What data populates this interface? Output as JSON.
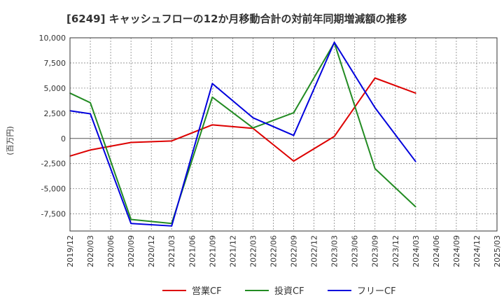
{
  "chart_data": {
    "type": "line",
    "title": "[6249]  キャッシュフローの12か月移動合計の対前年同期増減額の推移",
    "ylabel": "(百万円)",
    "xlabel": "",
    "ylim": [
      -9200,
      10000
    ],
    "yticks": [
      10000,
      7500,
      5000,
      2500,
      0,
      -2500,
      -5000,
      -7500
    ],
    "ytick_labels": [
      "10,000",
      "7,500",
      "5,000",
      "2,500",
      "0",
      "-2,500",
      "-5,000",
      "-7,500"
    ],
    "x": [
      "2019/12",
      "2020/03",
      "2020/06",
      "2020/09",
      "2020/12",
      "2021/03",
      "2021/06",
      "2021/09",
      "2021/12",
      "2022/03",
      "2022/06",
      "2022/09",
      "2022/12",
      "2023/03",
      "2023/06",
      "2023/09",
      "2023/12",
      "2024/03",
      "2024/06",
      "2024/09",
      "2024/12",
      "2025/03"
    ],
    "grid": true,
    "legend_position": "bottom",
    "series": [
      {
        "name": "営業CF",
        "color": "#dd0000",
        "values": [
          -1750,
          -1150,
          null,
          -400,
          null,
          -250,
          null,
          1350,
          null,
          1000,
          null,
          -2250,
          null,
          200,
          null,
          6000,
          null,
          4500,
          null,
          null,
          null,
          null
        ]
      },
      {
        "name": "投資CF",
        "color": "#228b22",
        "values": [
          4500,
          3550,
          null,
          -8050,
          null,
          -8450,
          null,
          4100,
          null,
          1050,
          null,
          2550,
          null,
          9500,
          null,
          -3000,
          null,
          -6800,
          null,
          null,
          null,
          null
        ]
      },
      {
        "name": "フリーCF",
        "color": "#0000dd",
        "values": [
          2750,
          2450,
          null,
          -8450,
          null,
          -8700,
          null,
          5450,
          null,
          2050,
          null,
          300,
          null,
          9550,
          null,
          3050,
          null,
          -2300,
          null,
          null,
          null,
          null
        ]
      }
    ]
  }
}
